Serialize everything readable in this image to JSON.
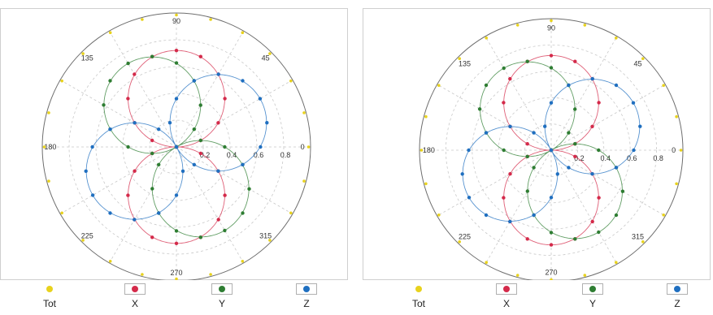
{
  "chart_data": [
    {
      "type": "scatter",
      "coordinate_system": "polar",
      "title": "",
      "angle_ticks": [
        "0",
        "45",
        "90",
        "135",
        "180",
        "225",
        "270",
        "315"
      ],
      "radial_ticks": [
        "0.2",
        "0.4",
        "0.6",
        "0.8"
      ],
      "rlim": [
        0,
        1
      ],
      "grid": true,
      "legend_position": "bottom",
      "series": [
        {
          "name": "Tot",
          "color": "#e8d21d",
          "theta": [
            0,
            15,
            30,
            45,
            60,
            75,
            90,
            105,
            120,
            135,
            150,
            165,
            180,
            195,
            210,
            225,
            240,
            255,
            270,
            285,
            300,
            315,
            330,
            345
          ],
          "r": [
            1,
            1,
            1,
            1,
            1,
            1,
            1,
            1,
            1,
            1,
            1,
            1,
            1,
            1,
            1,
            1,
            1,
            1,
            1,
            1,
            1,
            1,
            1,
            1
          ]
        },
        {
          "name": "X",
          "color": "#d42a4a",
          "theta": [
            0,
            15,
            30,
            45,
            60,
            75,
            90,
            105,
            120,
            135,
            150,
            165,
            180,
            195,
            210,
            225,
            240,
            255,
            270,
            285,
            300,
            315,
            330,
            345
          ],
          "r": [
            0,
            0.26,
            0.5,
            0.71,
            0.87,
            0.97,
            1,
            0.97,
            0.87,
            0.71,
            0.5,
            0.26,
            0,
            0.26,
            0.5,
            0.71,
            0.87,
            0.97,
            1,
            0.97,
            0.87,
            0.71,
            0.5,
            0.26
          ]
        },
        {
          "name": "Y",
          "color": "#2e7d32",
          "theta": [
            0,
            15,
            30,
            45,
            60,
            75,
            90,
            105,
            120,
            135,
            150,
            165,
            180,
            195,
            210,
            225,
            240,
            255,
            270,
            285,
            300,
            315,
            330,
            345
          ],
          "r": [
            0.5,
            0.26,
            0,
            0.26,
            0.5,
            0.71,
            0.87,
            0.97,
            1,
            0.97,
            0.87,
            0.71,
            0.5,
            0.26,
            0,
            0.26,
            0.5,
            0.71,
            0.87,
            0.97,
            1,
            0.97,
            0.87,
            0.71
          ]
        },
        {
          "name": "Z",
          "color": "#1f6fc0",
          "theta": [
            0,
            15,
            30,
            45,
            60,
            75,
            90,
            105,
            120,
            135,
            150,
            165,
            180,
            195,
            210,
            225,
            240,
            255,
            270,
            285,
            300,
            315,
            330,
            345
          ],
          "r": [
            0.87,
            0.97,
            1,
            0.97,
            0.87,
            0.71,
            0.5,
            0.26,
            0,
            0.26,
            0.5,
            0.71,
            0.87,
            0.97,
            1,
            0.97,
            0.87,
            0.71,
            0.5,
            0.26,
            0,
            0.26,
            0.5,
            0.71
          ]
        }
      ]
    },
    {
      "type": "scatter",
      "coordinate_system": "polar",
      "title": "",
      "angle_ticks": [
        "0",
        "45",
        "90",
        "135",
        "180",
        "225",
        "270",
        "315"
      ],
      "radial_ticks": [
        "0.2",
        "0.4",
        "0.6",
        "0.8"
      ],
      "rlim": [
        0,
        1
      ],
      "grid": true,
      "legend_position": "bottom",
      "series": [
        {
          "name": "Tot",
          "color": "#e8d21d",
          "theta": [
            0,
            15,
            30,
            45,
            60,
            75,
            90,
            105,
            120,
            135,
            150,
            165,
            180,
            195,
            210,
            225,
            240,
            255,
            270,
            285,
            300,
            315,
            330,
            345
          ],
          "r": [
            1,
            1,
            1,
            1,
            1,
            1,
            1,
            1,
            1,
            1,
            1,
            1,
            1,
            1,
            1,
            1,
            1,
            1,
            1,
            1,
            1,
            1,
            1,
            1
          ]
        },
        {
          "name": "X",
          "color": "#d42a4a",
          "theta": [
            0,
            15,
            30,
            45,
            60,
            75,
            90,
            105,
            120,
            135,
            150,
            165,
            180,
            195,
            210,
            225,
            240,
            255,
            270,
            285,
            300,
            315,
            330,
            345
          ],
          "r": [
            0,
            0.26,
            0.5,
            0.71,
            0.87,
            0.97,
            1,
            0.97,
            0.87,
            0.71,
            0.5,
            0.26,
            0,
            0.26,
            0.5,
            0.71,
            0.87,
            0.97,
            1,
            0.97,
            0.87,
            0.71,
            0.5,
            0.26
          ]
        },
        {
          "name": "Y",
          "color": "#2e7d32",
          "theta": [
            0,
            15,
            30,
            45,
            60,
            75,
            90,
            105,
            120,
            135,
            150,
            165,
            180,
            195,
            210,
            225,
            240,
            255,
            270,
            285,
            300,
            315,
            330,
            345
          ],
          "r": [
            0.5,
            0.26,
            0,
            0.26,
            0.5,
            0.71,
            0.87,
            0.97,
            1,
            0.97,
            0.87,
            0.71,
            0.5,
            0.26,
            0,
            0.26,
            0.5,
            0.71,
            0.87,
            0.97,
            1,
            0.97,
            0.87,
            0.71
          ]
        },
        {
          "name": "Z",
          "color": "#1f6fc0",
          "theta": [
            0,
            15,
            30,
            45,
            60,
            75,
            90,
            105,
            120,
            135,
            150,
            165,
            180,
            195,
            210,
            225,
            240,
            255,
            270,
            285,
            300,
            315,
            330,
            345
          ],
          "r": [
            0.87,
            0.97,
            1,
            0.97,
            0.87,
            0.71,
            0.5,
            0.26,
            0,
            0.26,
            0.5,
            0.71,
            0.87,
            0.97,
            1,
            0.97,
            0.87,
            0.71,
            0.5,
            0.26,
            0,
            0.26,
            0.5,
            0.71
          ]
        }
      ]
    }
  ],
  "legend": {
    "items": [
      {
        "label": "Tot",
        "color": "#e8d21d",
        "framed": false
      },
      {
        "label": "X",
        "color": "#d42a4a",
        "framed": true
      },
      {
        "label": "Y",
        "color": "#2e7d32",
        "framed": true
      },
      {
        "label": "Z",
        "color": "#1f6fc0",
        "framed": true
      }
    ]
  }
}
